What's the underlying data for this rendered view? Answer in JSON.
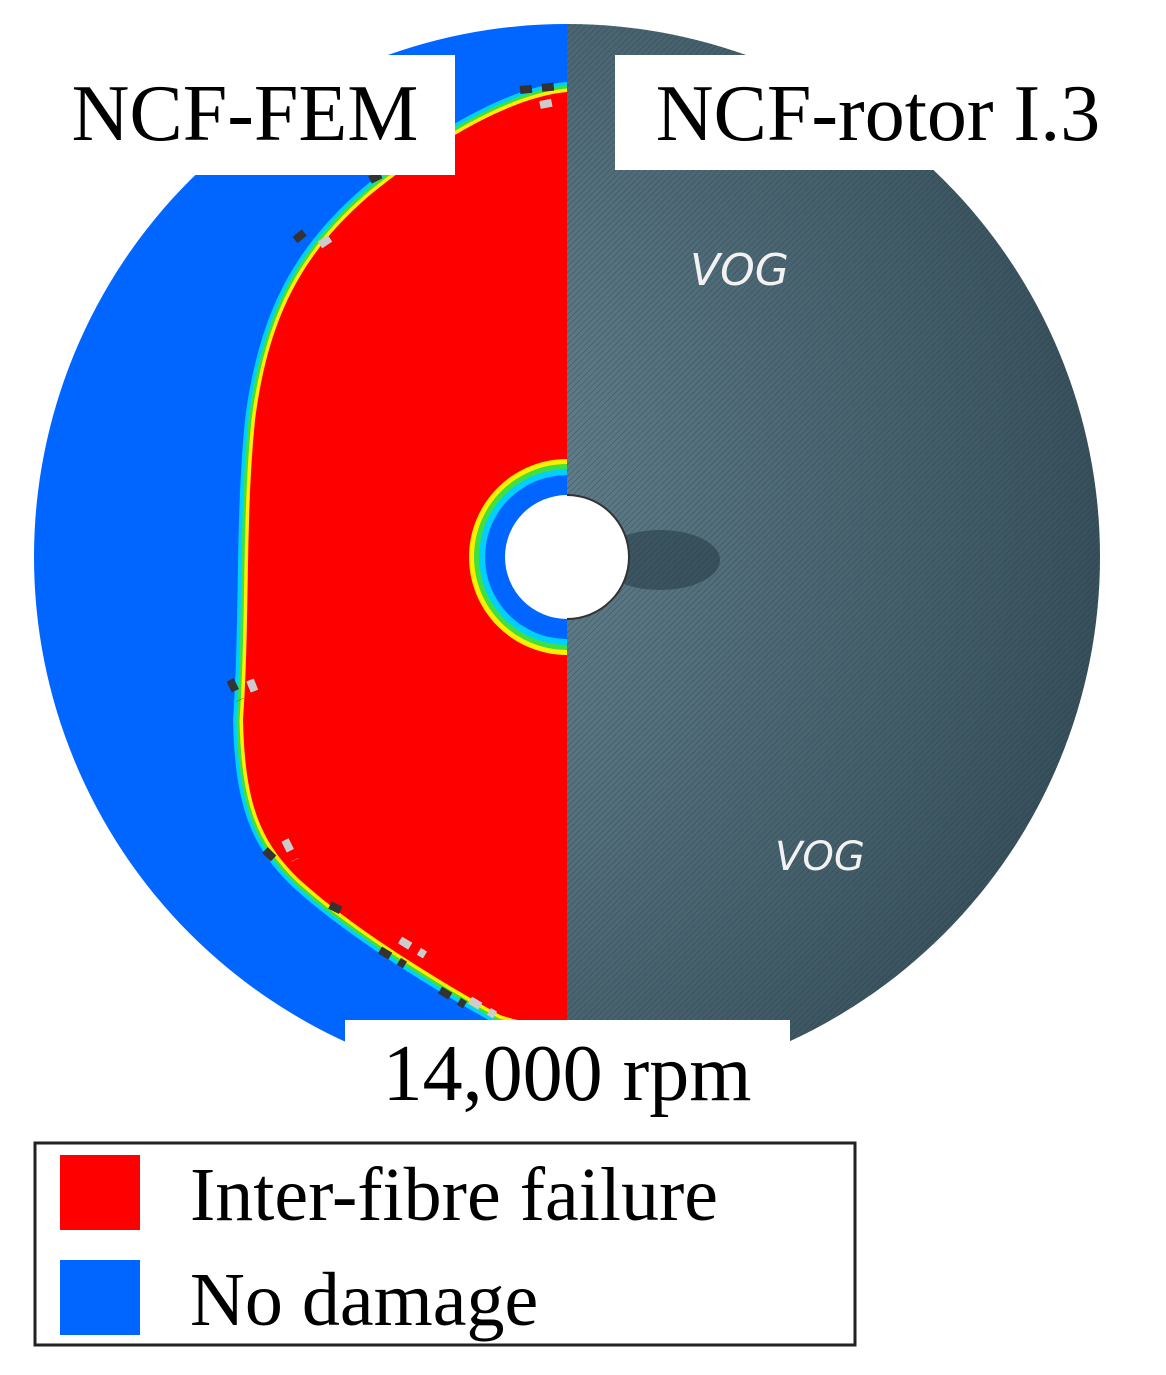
{
  "labels": {
    "left_title": "NCF-FEM",
    "right_title": "NCF-rotor I.3",
    "speed": "14,000 rpm",
    "annotations": [
      "VOG",
      "VOG"
    ]
  },
  "legend": {
    "items": [
      {
        "label": "Inter-fibre failure",
        "color": "#ff0000"
      },
      {
        "label": "No damage",
        "color": "#0066ff"
      }
    ]
  }
}
